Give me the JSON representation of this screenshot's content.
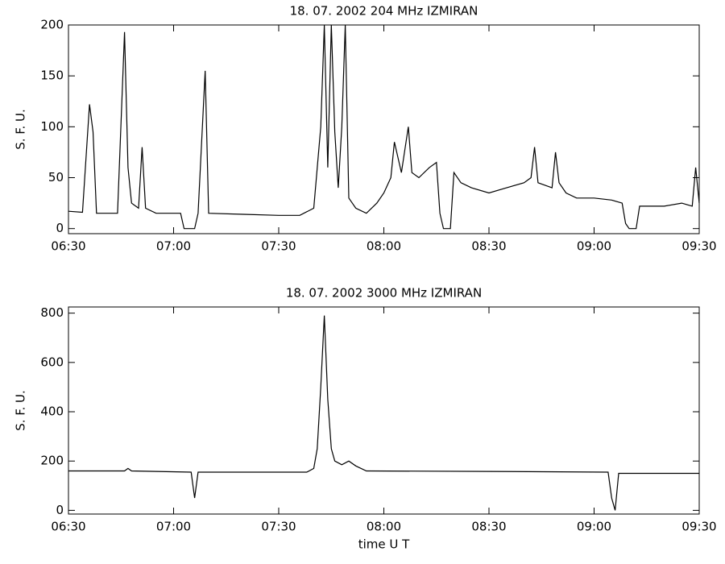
{
  "chart_data": [
    {
      "type": "line",
      "title": "18.  07.  2002    204 MHz    IZMIRAN",
      "ylabel": "S. F. U.",
      "color": "#000000",
      "x": [
        "06:30",
        "06:34",
        "06:36",
        "06:37",
        "06:38",
        "06:44",
        "06:46",
        "06:47",
        "06:48",
        "06:50",
        "06:51",
        "06:52",
        "06:55",
        "07:00",
        "07:02",
        "07:03",
        "07:06",
        "07:07",
        "07:09",
        "07:10",
        "07:20",
        "07:30",
        "07:36",
        "07:40",
        "07:42",
        "07:43",
        "07:44",
        "07:45",
        "07:46",
        "07:47",
        "07:48",
        "07:49",
        "07:50",
        "07:52",
        "07:55",
        "07:58",
        "08:00",
        "08:02",
        "08:03",
        "08:05",
        "08:07",
        "08:08",
        "08:10",
        "08:13",
        "08:15",
        "08:16",
        "08:17",
        "08:19",
        "08:20",
        "08:22",
        "08:25",
        "08:30",
        "08:35",
        "08:40",
        "08:42",
        "08:43",
        "08:44",
        "08:48",
        "08:49",
        "08:50",
        "08:52",
        "08:55",
        "09:00",
        "09:05",
        "09:08",
        "09:09",
        "09:10",
        "09:12",
        "09:13",
        "09:20",
        "09:25",
        "09:28",
        "09:29",
        "09:30"
      ],
      "values": [
        17,
        16,
        122,
        95,
        15,
        15,
        193,
        60,
        25,
        20,
        80,
        20,
        15,
        15,
        15,
        0,
        0,
        15,
        155,
        15,
        14,
        13,
        13,
        20,
        100,
        200,
        60,
        200,
        95,
        40,
        100,
        200,
        30,
        20,
        15,
        25,
        35,
        50,
        85,
        55,
        100,
        55,
        50,
        60,
        65,
        15,
        0,
        0,
        55,
        45,
        40,
        35,
        40,
        45,
        50,
        80,
        45,
        40,
        75,
        45,
        35,
        30,
        30,
        28,
        25,
        5,
        0,
        0,
        22,
        22,
        25,
        22,
        60,
        25
      ],
      "xlim": [
        "06:30",
        "09:30"
      ],
      "xticks": [
        "06:30",
        "07:00",
        "07:30",
        "08:00",
        "08:30",
        "09:00",
        "09:30"
      ],
      "ylim": [
        -5,
        200
      ],
      "yticks": [
        0,
        50,
        100,
        150,
        200
      ]
    },
    {
      "type": "line",
      "title": "18.  07.  2002    3000 MHz    IZMIRAN",
      "ylabel": "S. F. U.",
      "xlabel": "time   U T",
      "color": "#000000",
      "x": [
        "06:30",
        "06:46",
        "06:47",
        "06:48",
        "07:05",
        "07:06",
        "07:07",
        "07:38",
        "07:40",
        "07:41",
        "07:42",
        "07:43",
        "07:44",
        "07:45",
        "07:46",
        "07:48",
        "07:50",
        "07:52",
        "07:55",
        "08:30",
        "09:04",
        "09:05",
        "09:06",
        "09:07",
        "09:30"
      ],
      "values": [
        160,
        160,
        170,
        160,
        155,
        50,
        155,
        155,
        170,
        250,
        500,
        790,
        450,
        250,
        200,
        185,
        200,
        180,
        160,
        158,
        155,
        50,
        0,
        150,
        150
      ],
      "xlim": [
        "06:30",
        "09:30"
      ],
      "xticks": [
        "06:30",
        "07:00",
        "07:30",
        "08:00",
        "08:30",
        "09:00",
        "09:30"
      ],
      "ylim": [
        -15,
        825
      ],
      "yticks": [
        0,
        200,
        400,
        600,
        800
      ]
    }
  ]
}
